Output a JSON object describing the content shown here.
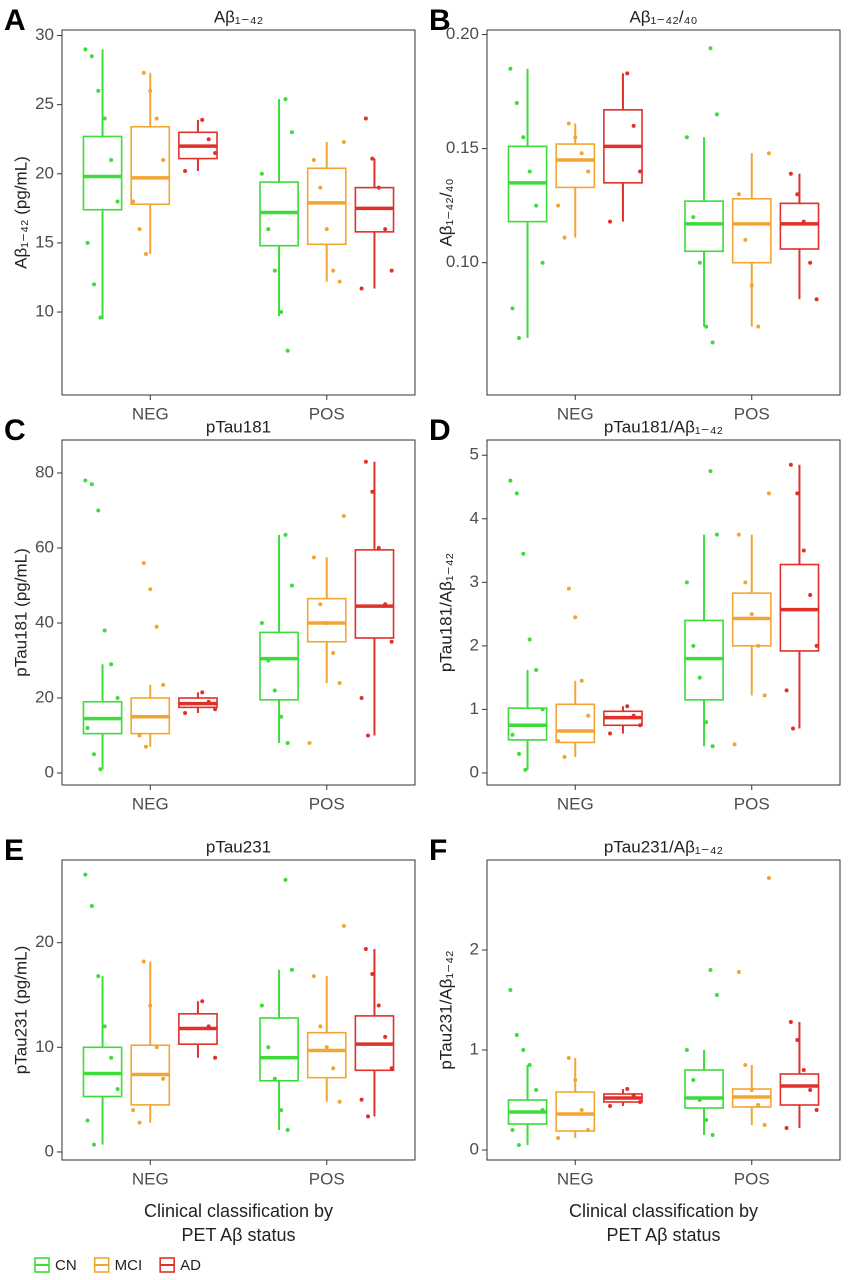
{
  "groups": [
    {
      "name": "CN",
      "color": "#3ddc3a"
    },
    {
      "name": "MCI",
      "color": "#f3a531"
    },
    {
      "name": "AD",
      "color": "#e0302a"
    }
  ],
  "chart_data": [
    {
      "type": "box",
      "panel_label": "A",
      "title": "Aβ₁₋₄₂",
      "y_label": "Aβ₁₋₄₂ (pg/mL)",
      "categories": [
        "NEG",
        "POS"
      ],
      "ylim": [
        4.0,
        30.4
      ],
      "yticks": [
        10,
        15,
        20,
        25,
        30
      ],
      "series": [
        {
          "boxes": [
            {
              "min": 9.5,
              "q1": 17.4,
              "median": 19.8,
              "q3": 22.7,
              "max": 29,
              "points": [
                29,
                28.5,
                26,
                24,
                21,
                18,
                15,
                12,
                9.6
              ]
            },
            {
              "min": 9.7,
              "q1": 14.8,
              "median": 17.2,
              "q3": 19.4,
              "max": 25.4,
              "points": [
                25.4,
                23,
                20,
                16,
                13,
                10,
                7.2
              ]
            }
          ]
        },
        {
          "boxes": [
            {
              "min": 14.2,
              "q1": 17.8,
              "median": 19.7,
              "q3": 23.4,
              "max": 27.3,
              "points": [
                27.3,
                26,
                24,
                21,
                18,
                16,
                14.2
              ]
            },
            {
              "min": 12.2,
              "q1": 14.9,
              "median": 17.9,
              "q3": 20.4,
              "max": 22.3,
              "points": [
                22.3,
                21,
                19,
                16,
                13,
                12.2
              ]
            }
          ]
        },
        {
          "boxes": [
            {
              "min": 20.2,
              "q1": 21.1,
              "median": 22.0,
              "q3": 23.0,
              "max": 23.9,
              "points": [
                23.9,
                22.5,
                21.5,
                20.2
              ]
            },
            {
              "min": 11.7,
              "q1": 15.8,
              "median": 17.5,
              "q3": 19.0,
              "max": 21.1,
              "points": [
                24,
                21.1,
                19,
                16,
                13,
                11.7
              ]
            }
          ]
        }
      ]
    },
    {
      "type": "box",
      "panel_label": "B",
      "title": "Aβ₁₋₄₂/₄₀",
      "y_label": "Aβ₁₋₄₂/₄₀",
      "categories": [
        "NEG",
        "POS"
      ],
      "ylim": [
        0.042,
        0.202
      ],
      "yticks": [
        {
          "value": 0.1,
          "label": "0.10"
        },
        {
          "value": 0.15,
          "label": "0.15"
        },
        {
          "value": 0.2,
          "label": "0.20"
        }
      ],
      "series": [
        {
          "boxes": [
            {
              "min": 0.067,
              "q1": 0.118,
              "median": 0.135,
              "q3": 0.151,
              "max": 0.185,
              "points": [
                0.185,
                0.17,
                0.155,
                0.14,
                0.125,
                0.1,
                0.08,
                0.067
              ]
            },
            {
              "min": 0.072,
              "q1": 0.105,
              "median": 0.117,
              "q3": 0.127,
              "max": 0.155,
              "points": [
                0.194,
                0.165,
                0.155,
                0.12,
                0.1,
                0.072,
                0.065
              ]
            }
          ]
        },
        {
          "boxes": [
            {
              "min": 0.111,
              "q1": 0.133,
              "median": 0.145,
              "q3": 0.152,
              "max": 0.161,
              "points": [
                0.161,
                0.155,
                0.148,
                0.14,
                0.125,
                0.111
              ]
            },
            {
              "min": 0.072,
              "q1": 0.1,
              "median": 0.117,
              "q3": 0.128,
              "max": 0.148,
              "points": [
                0.148,
                0.13,
                0.11,
                0.09,
                0.072
              ]
            }
          ]
        },
        {
          "boxes": [
            {
              "min": 0.118,
              "q1": 0.135,
              "median": 0.151,
              "q3": 0.167,
              "max": 0.183,
              "points": [
                0.183,
                0.16,
                0.14,
                0.118
              ]
            },
            {
              "min": 0.084,
              "q1": 0.106,
              "median": 0.117,
              "q3": 0.126,
              "max": 0.139,
              "points": [
                0.139,
                0.13,
                0.118,
                0.1,
                0.084
              ]
            }
          ]
        }
      ]
    },
    {
      "type": "box",
      "panel_label": "C",
      "title": "pTau181",
      "y_label": "pTau181 (pg/mL)",
      "categories": [
        "NEG",
        "POS"
      ],
      "ylim": [
        -3.2,
        88.8
      ],
      "yticks": [
        0,
        20,
        40,
        60,
        80
      ],
      "series": [
        {
          "boxes": [
            {
              "min": 1,
              "q1": 10.5,
              "median": 14.5,
              "q3": 19,
              "max": 29,
              "points": [
                78,
                77,
                70,
                38,
                29,
                20,
                12,
                5,
                1
              ]
            },
            {
              "min": 8,
              "q1": 19.5,
              "median": 30.5,
              "q3": 37.5,
              "max": 63.5,
              "points": [
                63.5,
                50,
                40,
                30,
                22,
                15,
                8
              ]
            }
          ]
        },
        {
          "boxes": [
            {
              "min": 7,
              "q1": 10.5,
              "median": 15,
              "q3": 20,
              "max": 23.5,
              "points": [
                56,
                49,
                39,
                23.5,
                15,
                10,
                7
              ]
            },
            {
              "min": 24,
              "q1": 35,
              "median": 40,
              "q3": 46.5,
              "max": 57.5,
              "points": [
                68.5,
                57.5,
                45,
                40,
                32,
                24,
                8
              ]
            }
          ]
        },
        {
          "boxes": [
            {
              "min": 16,
              "q1": 17.5,
              "median": 18.5,
              "q3": 20,
              "max": 21.5,
              "points": [
                21.5,
                19,
                17,
                16
              ]
            },
            {
              "min": 10,
              "q1": 36,
              "median": 44.5,
              "q3": 59.5,
              "max": 83,
              "points": [
                83,
                75,
                60,
                45,
                35,
                20,
                10
              ]
            }
          ]
        }
      ]
    },
    {
      "type": "box",
      "panel_label": "D",
      "title": "pTau181/Aβ₁₋₄₂",
      "y_label": "pTau181/Aβ₁₋₄₂",
      "categories": [
        "NEG",
        "POS"
      ],
      "ylim": [
        -0.19,
        5.24
      ],
      "yticks": [
        0,
        1,
        2,
        3,
        4,
        5
      ],
      "series": [
        {
          "boxes": [
            {
              "min": 0.05,
              "q1": 0.52,
              "median": 0.75,
              "q3": 1.02,
              "max": 1.62,
              "points": [
                4.6,
                4.4,
                3.45,
                2.1,
                1.62,
                1,
                0.6,
                0.3,
                0.05
              ]
            },
            {
              "min": 0.42,
              "q1": 1.15,
              "median": 1.8,
              "q3": 2.4,
              "max": 3.75,
              "points": [
                4.75,
                3.75,
                3,
                2,
                1.5,
                0.8,
                0.42
              ]
            }
          ]
        },
        {
          "boxes": [
            {
              "min": 0.25,
              "q1": 0.48,
              "median": 0.66,
              "q3": 1.08,
              "max": 1.45,
              "points": [
                2.9,
                2.45,
                1.45,
                0.9,
                0.5,
                0.25
              ]
            },
            {
              "min": 1.22,
              "q1": 2.0,
              "median": 2.43,
              "q3": 2.83,
              "max": 3.75,
              "points": [
                4.4,
                3.75,
                3,
                2.5,
                2,
                1.22,
                0.45
              ]
            }
          ]
        },
        {
          "boxes": [
            {
              "min": 0.62,
              "q1": 0.75,
              "median": 0.87,
              "q3": 0.97,
              "max": 1.05,
              "points": [
                1.05,
                0.9,
                0.75,
                0.62
              ]
            },
            {
              "min": 0.7,
              "q1": 1.92,
              "median": 2.57,
              "q3": 3.28,
              "max": 4.85,
              "points": [
                4.85,
                4.4,
                3.5,
                2.8,
                2,
                1.3,
                0.7
              ]
            }
          ]
        }
      ]
    },
    {
      "type": "box",
      "panel_label": "E",
      "title": "pTau231",
      "y_label": "pTau231 (pg/mL)",
      "categories": [
        "NEG",
        "POS"
      ],
      "x_label": [
        "Clinical classification by",
        "PET Aβ status"
      ],
      "ylim": [
        -0.77,
        27.9
      ],
      "yticks": [
        0,
        10,
        20
      ],
      "series": [
        {
          "boxes": [
            {
              "min": 0.7,
              "q1": 5.3,
              "median": 7.5,
              "q3": 10,
              "max": 16.8,
              "points": [
                26.5,
                23.5,
                16.8,
                12,
                9,
                6,
                3,
                0.7
              ]
            },
            {
              "min": 2.1,
              "q1": 6.8,
              "median": 9,
              "q3": 12.8,
              "max": 17.4,
              "points": [
                26,
                17.4,
                14,
                10,
                7,
                4,
                2.1
              ]
            }
          ]
        },
        {
          "boxes": [
            {
              "min": 2.8,
              "q1": 4.5,
              "median": 7.4,
              "q3": 10.2,
              "max": 18.2,
              "points": [
                18.2,
                14,
                10,
                7,
                4,
                2.8
              ]
            },
            {
              "min": 4.8,
              "q1": 7.1,
              "median": 9.7,
              "q3": 11.4,
              "max": 16.8,
              "points": [
                21.6,
                16.8,
                12,
                10,
                8,
                4.8
              ]
            }
          ]
        },
        {
          "boxes": [
            {
              "min": 9,
              "q1": 10.3,
              "median": 11.8,
              "q3": 13.2,
              "max": 14.4,
              "points": [
                14.4,
                12,
                9
              ]
            },
            {
              "min": 3.4,
              "q1": 7.8,
              "median": 10.3,
              "q3": 13,
              "max": 19.4,
              "points": [
                19.4,
                17,
                14,
                11,
                8,
                5,
                3.4
              ]
            }
          ]
        }
      ]
    },
    {
      "type": "box",
      "panel_label": "F",
      "title": "pTau231/Aβ₁₋₄₂",
      "y_label": "pTau231/Aβ₁₋₄₂",
      "categories": [
        "NEG",
        "POS"
      ],
      "x_label": [
        "Clinical classification by",
        "PET Aβ status"
      ],
      "ylim": [
        -0.1,
        2.9
      ],
      "yticks": [
        0,
        1,
        2
      ],
      "series": [
        {
          "boxes": [
            {
              "min": 0.05,
              "q1": 0.26,
              "median": 0.38,
              "q3": 0.5,
              "max": 0.85,
              "points": [
                1.6,
                1.15,
                1,
                0.85,
                0.6,
                0.4,
                0.2,
                0.05
              ]
            },
            {
              "min": 0.15,
              "q1": 0.42,
              "median": 0.52,
              "q3": 0.8,
              "max": 1.0,
              "points": [
                1.8,
                1.55,
                1,
                0.7,
                0.5,
                0.3,
                0.15
              ]
            }
          ]
        },
        {
          "boxes": [
            {
              "min": 0.12,
              "q1": 0.19,
              "median": 0.36,
              "q3": 0.58,
              "max": 0.92,
              "points": [
                0.92,
                0.7,
                0.4,
                0.2,
                0.12
              ]
            },
            {
              "min": 0.25,
              "q1": 0.43,
              "median": 0.53,
              "q3": 0.61,
              "max": 0.85,
              "points": [
                2.72,
                1.78,
                0.85,
                0.6,
                0.45,
                0.25
              ]
            }
          ]
        },
        {
          "boxes": [
            {
              "min": 0.44,
              "q1": 0.48,
              "median": 0.52,
              "q3": 0.56,
              "max": 0.61,
              "points": [
                0.61,
                0.55,
                0.48,
                0.44
              ]
            },
            {
              "min": 0.22,
              "q1": 0.45,
              "median": 0.64,
              "q3": 0.76,
              "max": 1.28,
              "points": [
                1.28,
                1.1,
                0.8,
                0.6,
                0.4,
                0.22
              ]
            }
          ]
        }
      ]
    }
  ]
}
